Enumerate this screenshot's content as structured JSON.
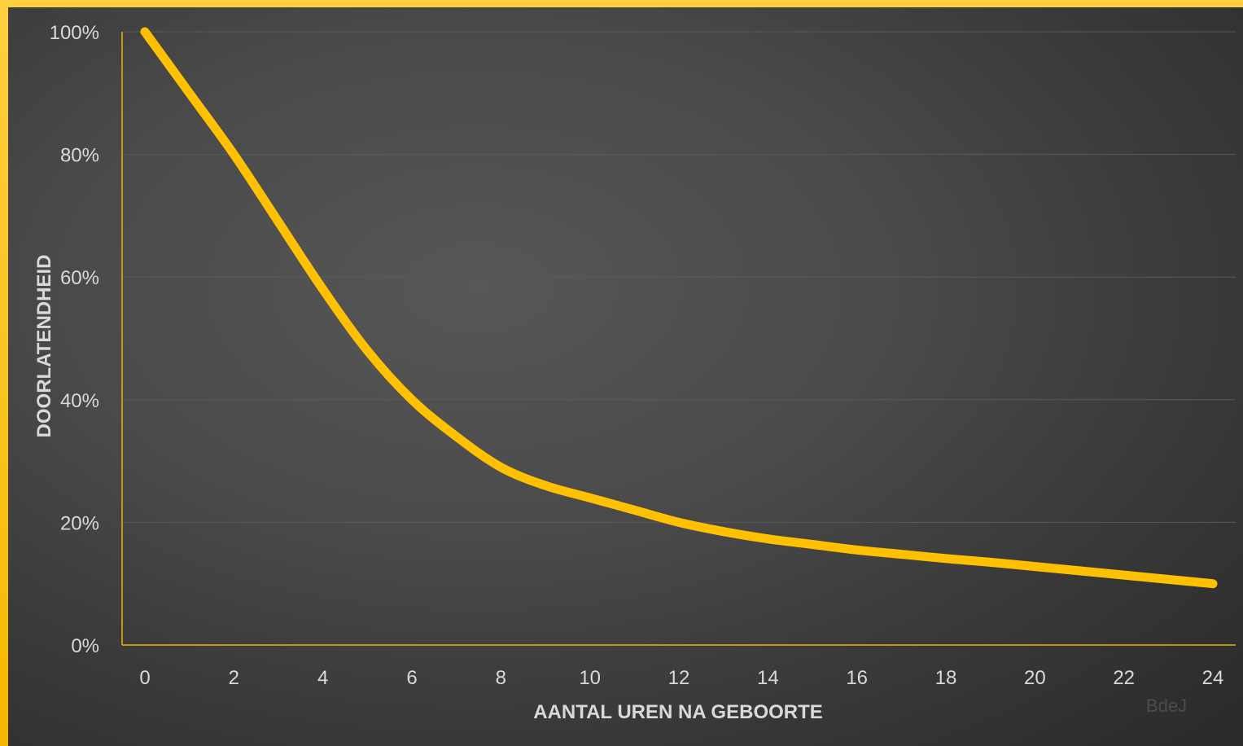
{
  "chart_data": {
    "type": "line",
    "title": "",
    "xlabel": "AANTAL UREN NA GEBOORTE",
    "ylabel": "DOORLATENDHEID",
    "xlim": [
      0,
      24
    ],
    "ylim": [
      0,
      100
    ],
    "x_ticks": [
      "0",
      "2",
      "4",
      "6",
      "8",
      "10",
      "12",
      "14",
      "16",
      "18",
      "20",
      "22",
      "24"
    ],
    "y_ticks": [
      "0%",
      "20%",
      "40%",
      "60%",
      "80%",
      "100%"
    ],
    "grid": true,
    "legend": "none",
    "series": [
      {
        "color": "#ffc000",
        "x": [
          0,
          1,
          2,
          3,
          4,
          5,
          6,
          7,
          8,
          9,
          10,
          11,
          12,
          13,
          14,
          15,
          16,
          17,
          18,
          19,
          20,
          21,
          22,
          23,
          24
        ],
        "y": [
          100,
          90,
          80,
          69,
          58,
          48,
          40,
          34,
          29,
          26,
          24,
          22,
          20,
          18.5,
          17.3,
          16.4,
          15.5,
          14.8,
          14.1,
          13.5,
          12.8,
          12.1,
          11.4,
          10.7,
          10
        ]
      }
    ]
  },
  "watermark": "BdeJ",
  "colors": {
    "frame": "#ffc000",
    "line": "#ffc000",
    "axis": "#e6b800",
    "grid": "#5a5a5a",
    "text": "#d9d9d9"
  }
}
